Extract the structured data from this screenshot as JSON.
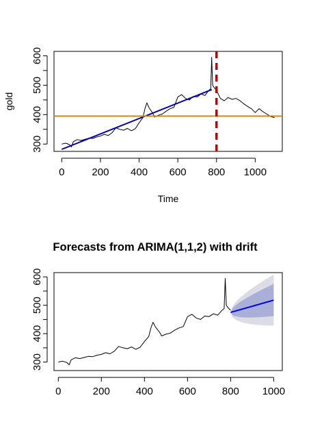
{
  "chart_data": [
    {
      "type": "line",
      "title": "",
      "xlabel": "Time",
      "ylabel": "gold",
      "xlim": [
        -40,
        1140
      ],
      "ylim": [
        275,
        615
      ],
      "xticks": [
        0,
        200,
        400,
        600,
        800,
        1000
      ],
      "xtick_labels": [
        "0",
        "200",
        "400",
        "600",
        "800",
        "1000"
      ],
      "yticks": [
        300,
        400,
        500,
        600
      ],
      "ytick_labels": [
        "300",
        "400",
        "500",
        "600"
      ],
      "grid": false,
      "legend": "none",
      "series": [
        {
          "style": "line",
          "color": "#000000",
          "x": [
            0,
            20,
            40,
            50,
            60,
            80,
            100,
            120,
            140,
            160,
            180,
            200,
            220,
            240,
            260,
            280,
            300,
            320,
            340,
            360,
            380,
            400,
            420,
            430,
            440,
            450,
            460,
            470,
            480,
            500,
            520,
            540,
            560,
            580,
            600,
            620,
            640,
            660,
            680,
            700,
            720,
            740,
            760,
            770,
            775,
            780,
            790,
            800,
            820,
            840,
            860,
            880,
            900,
            920,
            940,
            960,
            980,
            1000,
            1020,
            1040,
            1060,
            1080,
            1100
          ],
          "y": [
            300,
            303,
            298,
            290,
            308,
            315,
            312,
            316,
            320,
            319,
            324,
            327,
            333,
            329,
            338,
            355,
            350,
            347,
            353,
            345,
            352,
            372,
            390,
            420,
            440,
            425,
            415,
            405,
            392,
            398,
            402,
            412,
            420,
            425,
            460,
            468,
            455,
            450,
            462,
            460,
            470,
            465,
            482,
            488,
            595,
            500,
            490,
            482,
            455,
            447,
            458,
            452,
            455,
            448,
            437,
            428,
            420,
            407,
            420,
            410,
            402,
            393,
            390
          ]
        },
        {
          "style": "line",
          "color": "#0000b4",
          "x": [
            0,
            775
          ],
          "y": [
            282,
            485
          ]
        },
        {
          "style": "hline",
          "color": "#d68700",
          "y": 395
        },
        {
          "style": "vline-dashed",
          "color": "#c00000",
          "x": 800
        }
      ]
    },
    {
      "type": "line",
      "title": "Forecasts from ARIMA(1,1,2) with drift",
      "xlabel": "",
      "ylabel": "",
      "xlim": [
        -20,
        1040
      ],
      "ylim": [
        270,
        615
      ],
      "xticks": [
        0,
        200,
        400,
        600,
        800,
        1000
      ],
      "xtick_labels": [
        "0",
        "200",
        "400",
        "600",
        "800",
        "1000"
      ],
      "yticks": [
        300,
        400,
        500,
        600
      ],
      "ytick_labels": [
        "300",
        "400",
        "500",
        "600"
      ],
      "grid": false,
      "legend": "none",
      "series": [
        {
          "style": "line",
          "color": "#000000",
          "x": [
            0,
            20,
            40,
            50,
            60,
            80,
            100,
            120,
            140,
            160,
            180,
            200,
            220,
            240,
            260,
            280,
            300,
            320,
            340,
            360,
            380,
            400,
            420,
            430,
            440,
            450,
            460,
            470,
            480,
            500,
            520,
            540,
            560,
            580,
            600,
            620,
            640,
            660,
            680,
            700,
            720,
            740,
            760,
            770,
            775,
            780,
            790,
            800
          ],
          "y": [
            300,
            303,
            298,
            290,
            308,
            315,
            312,
            316,
            320,
            319,
            324,
            327,
            333,
            329,
            338,
            355,
            350,
            347,
            353,
            345,
            352,
            372,
            390,
            420,
            440,
            425,
            415,
            405,
            392,
            398,
            402,
            412,
            420,
            425,
            460,
            468,
            455,
            450,
            462,
            460,
            470,
            465,
            482,
            488,
            595,
            500,
            490,
            482
          ]
        },
        {
          "style": "forecast",
          "color": "#0000ee",
          "x": [
            800,
            1000
          ],
          "y": [
            475,
            518
          ],
          "band80_color": "#a9afd6",
          "band80_lower": [
            475,
            462
          ],
          "band80_upper": [
            475,
            575
          ],
          "band95_color": "#dcdce6",
          "band95_lower": [
            475,
            428
          ],
          "band95_upper": [
            475,
            608
          ]
        }
      ]
    }
  ]
}
